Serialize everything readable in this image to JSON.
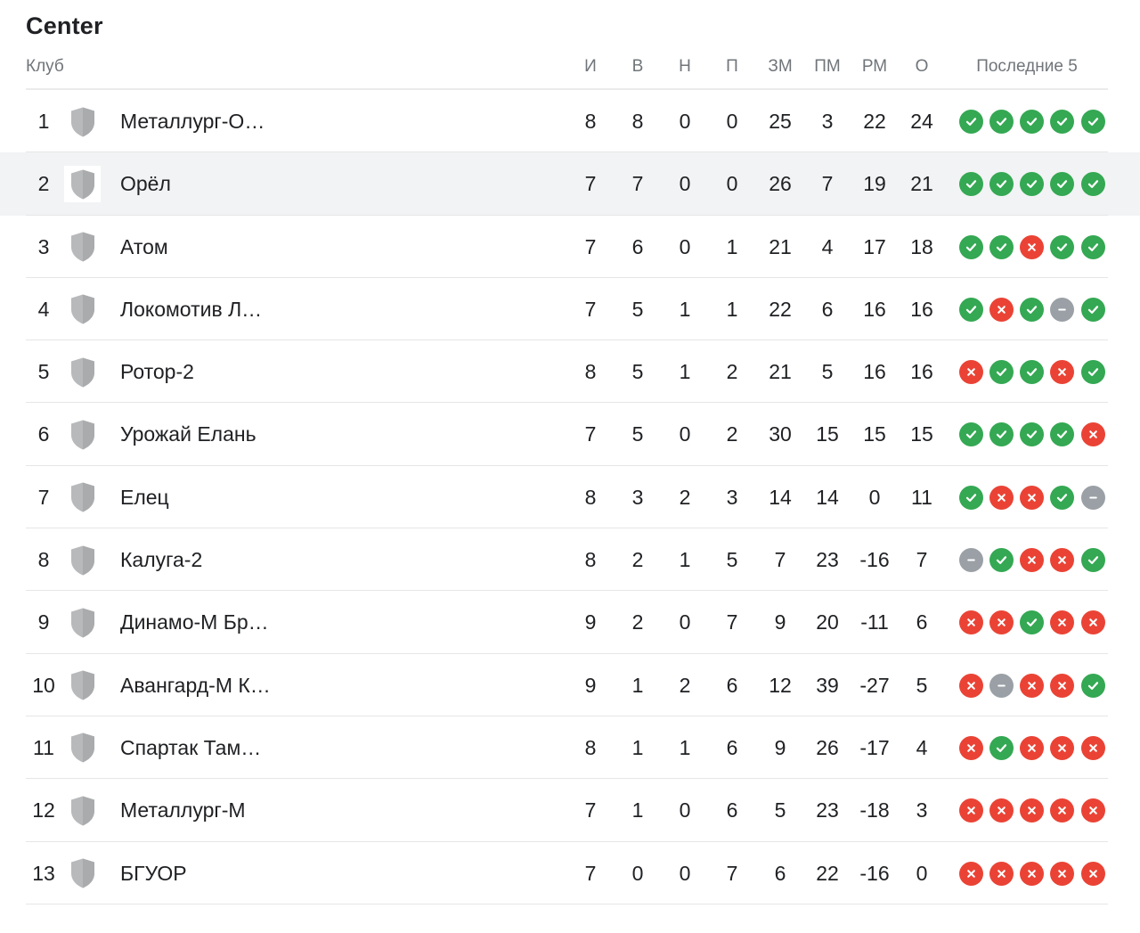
{
  "title": "Center",
  "columns": {
    "club": "Клуб",
    "played": "И",
    "won": "В",
    "drawn": "Н",
    "lost": "П",
    "goals_for": "ЗМ",
    "goals_against": "ПМ",
    "goal_diff": "РМ",
    "points": "О",
    "last5": "Последние 5"
  },
  "colors": {
    "win": "#34a853",
    "loss": "#ea4335",
    "draw": "#9aa0a6",
    "highlight_row": "#f1f3f4"
  },
  "icons": {
    "crest": "shield-icon",
    "win": "check-icon",
    "loss": "cross-icon",
    "draw": "minus-icon"
  },
  "highlighted_position": "2",
  "rows": [
    {
      "pos": "1",
      "club": "Металлург-О…",
      "played": "8",
      "won": "8",
      "drawn": "0",
      "lost": "0",
      "gf": "25",
      "ga": "3",
      "gd": "22",
      "pts": "24",
      "last5": [
        "W",
        "W",
        "W",
        "W",
        "W"
      ]
    },
    {
      "pos": "2",
      "club": "Орёл",
      "played": "7",
      "won": "7",
      "drawn": "0",
      "lost": "0",
      "gf": "26",
      "ga": "7",
      "gd": "19",
      "pts": "21",
      "last5": [
        "W",
        "W",
        "W",
        "W",
        "W"
      ]
    },
    {
      "pos": "3",
      "club": "Атом",
      "played": "7",
      "won": "6",
      "drawn": "0",
      "lost": "1",
      "gf": "21",
      "ga": "4",
      "gd": "17",
      "pts": "18",
      "last5": [
        "W",
        "W",
        "L",
        "W",
        "W"
      ]
    },
    {
      "pos": "4",
      "club": "Локомотив Л…",
      "played": "7",
      "won": "5",
      "drawn": "1",
      "lost": "1",
      "gf": "22",
      "ga": "6",
      "gd": "16",
      "pts": "16",
      "last5": [
        "W",
        "L",
        "W",
        "D",
        "W"
      ]
    },
    {
      "pos": "5",
      "club": "Ротор-2",
      "played": "8",
      "won": "5",
      "drawn": "1",
      "lost": "2",
      "gf": "21",
      "ga": "5",
      "gd": "16",
      "pts": "16",
      "last5": [
        "L",
        "W",
        "W",
        "L",
        "W"
      ]
    },
    {
      "pos": "6",
      "club": "Урожай Елань",
      "played": "7",
      "won": "5",
      "drawn": "0",
      "lost": "2",
      "gf": "30",
      "ga": "15",
      "gd": "15",
      "pts": "15",
      "last5": [
        "W",
        "W",
        "W",
        "W",
        "L"
      ]
    },
    {
      "pos": "7",
      "club": "Елец",
      "played": "8",
      "won": "3",
      "drawn": "2",
      "lost": "3",
      "gf": "14",
      "ga": "14",
      "gd": "0",
      "pts": "11",
      "last5": [
        "W",
        "L",
        "L",
        "W",
        "D"
      ]
    },
    {
      "pos": "8",
      "club": "Калуга-2",
      "played": "8",
      "won": "2",
      "drawn": "1",
      "lost": "5",
      "gf": "7",
      "ga": "23",
      "gd": "-16",
      "pts": "7",
      "last5": [
        "D",
        "W",
        "L",
        "L",
        "W"
      ]
    },
    {
      "pos": "9",
      "club": "Динамо-М Бр…",
      "played": "9",
      "won": "2",
      "drawn": "0",
      "lost": "7",
      "gf": "9",
      "ga": "20",
      "gd": "-11",
      "pts": "6",
      "last5": [
        "L",
        "L",
        "W",
        "L",
        "L"
      ]
    },
    {
      "pos": "10",
      "club": "Авангард-М К…",
      "played": "9",
      "won": "1",
      "drawn": "2",
      "lost": "6",
      "gf": "12",
      "ga": "39",
      "gd": "-27",
      "pts": "5",
      "last5": [
        "L",
        "D",
        "L",
        "L",
        "W"
      ]
    },
    {
      "pos": "11",
      "club": "Спартак Там…",
      "played": "8",
      "won": "1",
      "drawn": "1",
      "lost": "6",
      "gf": "9",
      "ga": "26",
      "gd": "-17",
      "pts": "4",
      "last5": [
        "L",
        "W",
        "L",
        "L",
        "L"
      ]
    },
    {
      "pos": "12",
      "club": "Металлург-М",
      "played": "7",
      "won": "1",
      "drawn": "0",
      "lost": "6",
      "gf": "5",
      "ga": "23",
      "gd": "-18",
      "pts": "3",
      "last5": [
        "L",
        "L",
        "L",
        "L",
        "L"
      ]
    },
    {
      "pos": "13",
      "club": "БГУОР",
      "played": "7",
      "won": "0",
      "drawn": "0",
      "lost": "7",
      "gf": "6",
      "ga": "22",
      "gd": "-16",
      "pts": "0",
      "last5": [
        "L",
        "L",
        "L",
        "L",
        "L"
      ]
    }
  ]
}
